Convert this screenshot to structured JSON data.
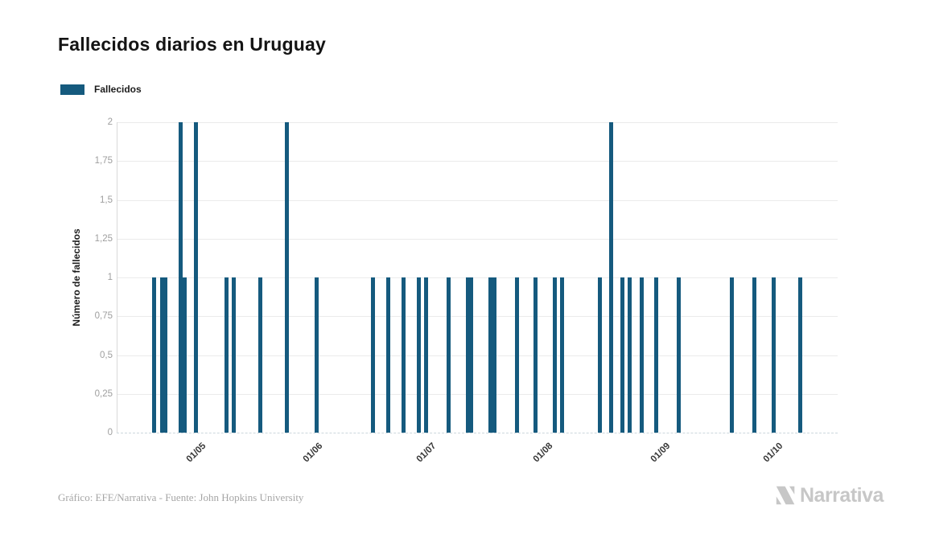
{
  "title": "Fallecidos diarios en Uruguay",
  "legend": {
    "label": "Fallecidos",
    "color": "#155a7e"
  },
  "y_axis": {
    "title": "Número de fallecidos",
    "ticks": [
      "2",
      "1,75",
      "1,5",
      "1,25",
      "1",
      "0,75",
      "0,5",
      "0,25",
      "0"
    ]
  },
  "x_axis": {
    "tick_labels": [
      "01/05",
      "01/06",
      "01/07",
      "01/08",
      "01/09",
      "01/10"
    ]
  },
  "footer": {
    "credit": "Gráfico: EFE/Narrativa - Fuente: John Hopkins University"
  },
  "watermark": {
    "text": "Narrativa"
  },
  "chart_data": {
    "type": "bar",
    "title": "Fallecidos diarios en Uruguay",
    "series_name": "Fallecidos",
    "xlabel": "",
    "ylabel": "Número de fallecidos",
    "ylim": [
      0,
      2
    ],
    "y_tick_step": 0.25,
    "grid": "horizontal-only",
    "legend_position": "top-left",
    "bar_color": "#155a7e",
    "date_format": "DD/MM (year not shown)",
    "x_domain": [
      "10/04",
      "18/10"
    ],
    "x_tick_labels": [
      "01/05",
      "01/06",
      "01/07",
      "01/08",
      "01/09",
      "01/10"
    ],
    "bars": [
      {
        "date": "20/04",
        "value": 1
      },
      {
        "date": "22/04",
        "value": 1
      },
      {
        "date": "23/04",
        "value": 1
      },
      {
        "date": "27/04",
        "value": 2
      },
      {
        "date": "28/04",
        "value": 1
      },
      {
        "date": "01/05",
        "value": 2
      },
      {
        "date": "09/05",
        "value": 1
      },
      {
        "date": "11/05",
        "value": 1
      },
      {
        "date": "18/05",
        "value": 1
      },
      {
        "date": "25/05",
        "value": 2
      },
      {
        "date": "02/06",
        "value": 1
      },
      {
        "date": "17/06",
        "value": 1
      },
      {
        "date": "21/06",
        "value": 1
      },
      {
        "date": "25/06",
        "value": 1
      },
      {
        "date": "29/06",
        "value": 1
      },
      {
        "date": "01/07",
        "value": 1
      },
      {
        "date": "07/07",
        "value": 1
      },
      {
        "date": "12/07",
        "value": 1
      },
      {
        "date": "13/07",
        "value": 1
      },
      {
        "date": "18/07",
        "value": 1
      },
      {
        "date": "19/07",
        "value": 1
      },
      {
        "date": "25/07",
        "value": 1
      },
      {
        "date": "30/07",
        "value": 1
      },
      {
        "date": "04/08",
        "value": 1
      },
      {
        "date": "06/08",
        "value": 1
      },
      {
        "date": "16/08",
        "value": 1
      },
      {
        "date": "19/08",
        "value": 2
      },
      {
        "date": "22/08",
        "value": 1
      },
      {
        "date": "24/08",
        "value": 1
      },
      {
        "date": "27/08",
        "value": 1
      },
      {
        "date": "31/08",
        "value": 1
      },
      {
        "date": "06/09",
        "value": 1
      },
      {
        "date": "20/09",
        "value": 1
      },
      {
        "date": "26/09",
        "value": 1
      },
      {
        "date": "01/10",
        "value": 1
      },
      {
        "date": "08/10",
        "value": 1
      }
    ]
  }
}
